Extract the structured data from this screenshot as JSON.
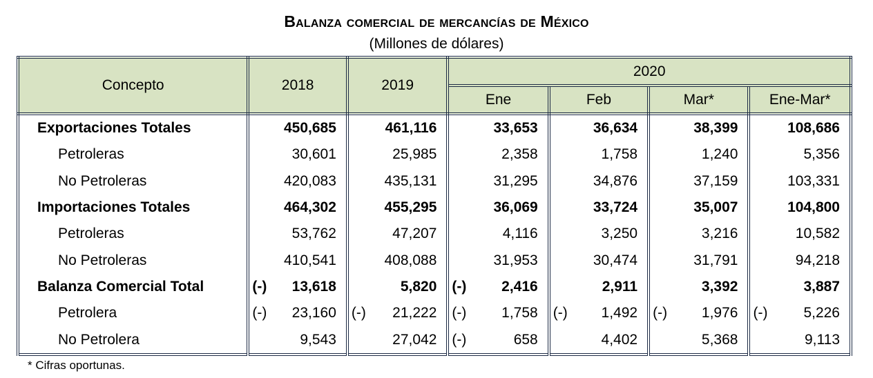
{
  "title": "Balanza comercial de mercancías de México",
  "subtitle": "(Millones de dólares)",
  "header": {
    "concept": "Concepto",
    "y2018": "2018",
    "y2019": "2019",
    "y2020": "2020",
    "months": [
      "Ene",
      "Feb",
      "Mar*",
      "Ene-Mar*"
    ]
  },
  "rows": [
    {
      "label": "Exportaciones Totales",
      "bold": true,
      "cells": [
        [
          "",
          "450,685"
        ],
        [
          "",
          "461,116"
        ],
        [
          "",
          "33,653"
        ],
        [
          "",
          "36,634"
        ],
        [
          "",
          "38,399"
        ],
        [
          "",
          "108,686"
        ]
      ]
    },
    {
      "label": "Petroleras",
      "cells": [
        [
          "",
          "30,601"
        ],
        [
          "",
          "25,985"
        ],
        [
          "",
          "2,358"
        ],
        [
          "",
          "1,758"
        ],
        [
          "",
          "1,240"
        ],
        [
          "",
          "5,356"
        ]
      ]
    },
    {
      "label": "No Petroleras",
      "cells": [
        [
          "",
          "420,083"
        ],
        [
          "",
          "435,131"
        ],
        [
          "",
          "31,295"
        ],
        [
          "",
          "34,876"
        ],
        [
          "",
          "37,159"
        ],
        [
          "",
          "103,331"
        ]
      ]
    },
    {
      "label": "Importaciones Totales",
      "bold": true,
      "cells": [
        [
          "",
          "464,302"
        ],
        [
          "",
          "455,295"
        ],
        [
          "",
          "36,069"
        ],
        [
          "",
          "33,724"
        ],
        [
          "",
          "35,007"
        ],
        [
          "",
          "104,800"
        ]
      ]
    },
    {
      "label": "Petroleras",
      "cells": [
        [
          "",
          "53,762"
        ],
        [
          "",
          "47,207"
        ],
        [
          "",
          "4,116"
        ],
        [
          "",
          "3,250"
        ],
        [
          "",
          "3,216"
        ],
        [
          "",
          "10,582"
        ]
      ]
    },
    {
      "label": "No Petroleras",
      "cells": [
        [
          "",
          "410,541"
        ],
        [
          "",
          "408,088"
        ],
        [
          "",
          "31,953"
        ],
        [
          "",
          "30,474"
        ],
        [
          "",
          "31,791"
        ],
        [
          "",
          "94,218"
        ]
      ]
    },
    {
      "label": "Balanza Comercial Total",
      "bold": true,
      "cells": [
        [
          "(-)",
          "13,618"
        ],
        [
          "",
          "5,820"
        ],
        [
          "(-)",
          "2,416"
        ],
        [
          "",
          "2,911"
        ],
        [
          "",
          "3,392"
        ],
        [
          "",
          "3,887"
        ]
      ]
    },
    {
      "label": "Petrolera",
      "cells": [
        [
          "(-)",
          "23,160"
        ],
        [
          "(-)",
          "21,222"
        ],
        [
          "(-)",
          "1,758"
        ],
        [
          "(-)",
          "1,492"
        ],
        [
          "(-)",
          "1,976"
        ],
        [
          "(-)",
          "5,226"
        ]
      ]
    },
    {
      "label": "No Petrolera",
      "cells": [
        [
          "",
          "9,543"
        ],
        [
          "",
          "27,042"
        ],
        [
          "(-)",
          "658"
        ],
        [
          "",
          "4,402"
        ],
        [
          "",
          "5,368"
        ],
        [
          "",
          "9,113"
        ]
      ]
    }
  ],
  "footnote": "* Cifras oportunas.",
  "colors": {
    "header_bg": "#d8e3c3",
    "border": "#1c2a44"
  }
}
